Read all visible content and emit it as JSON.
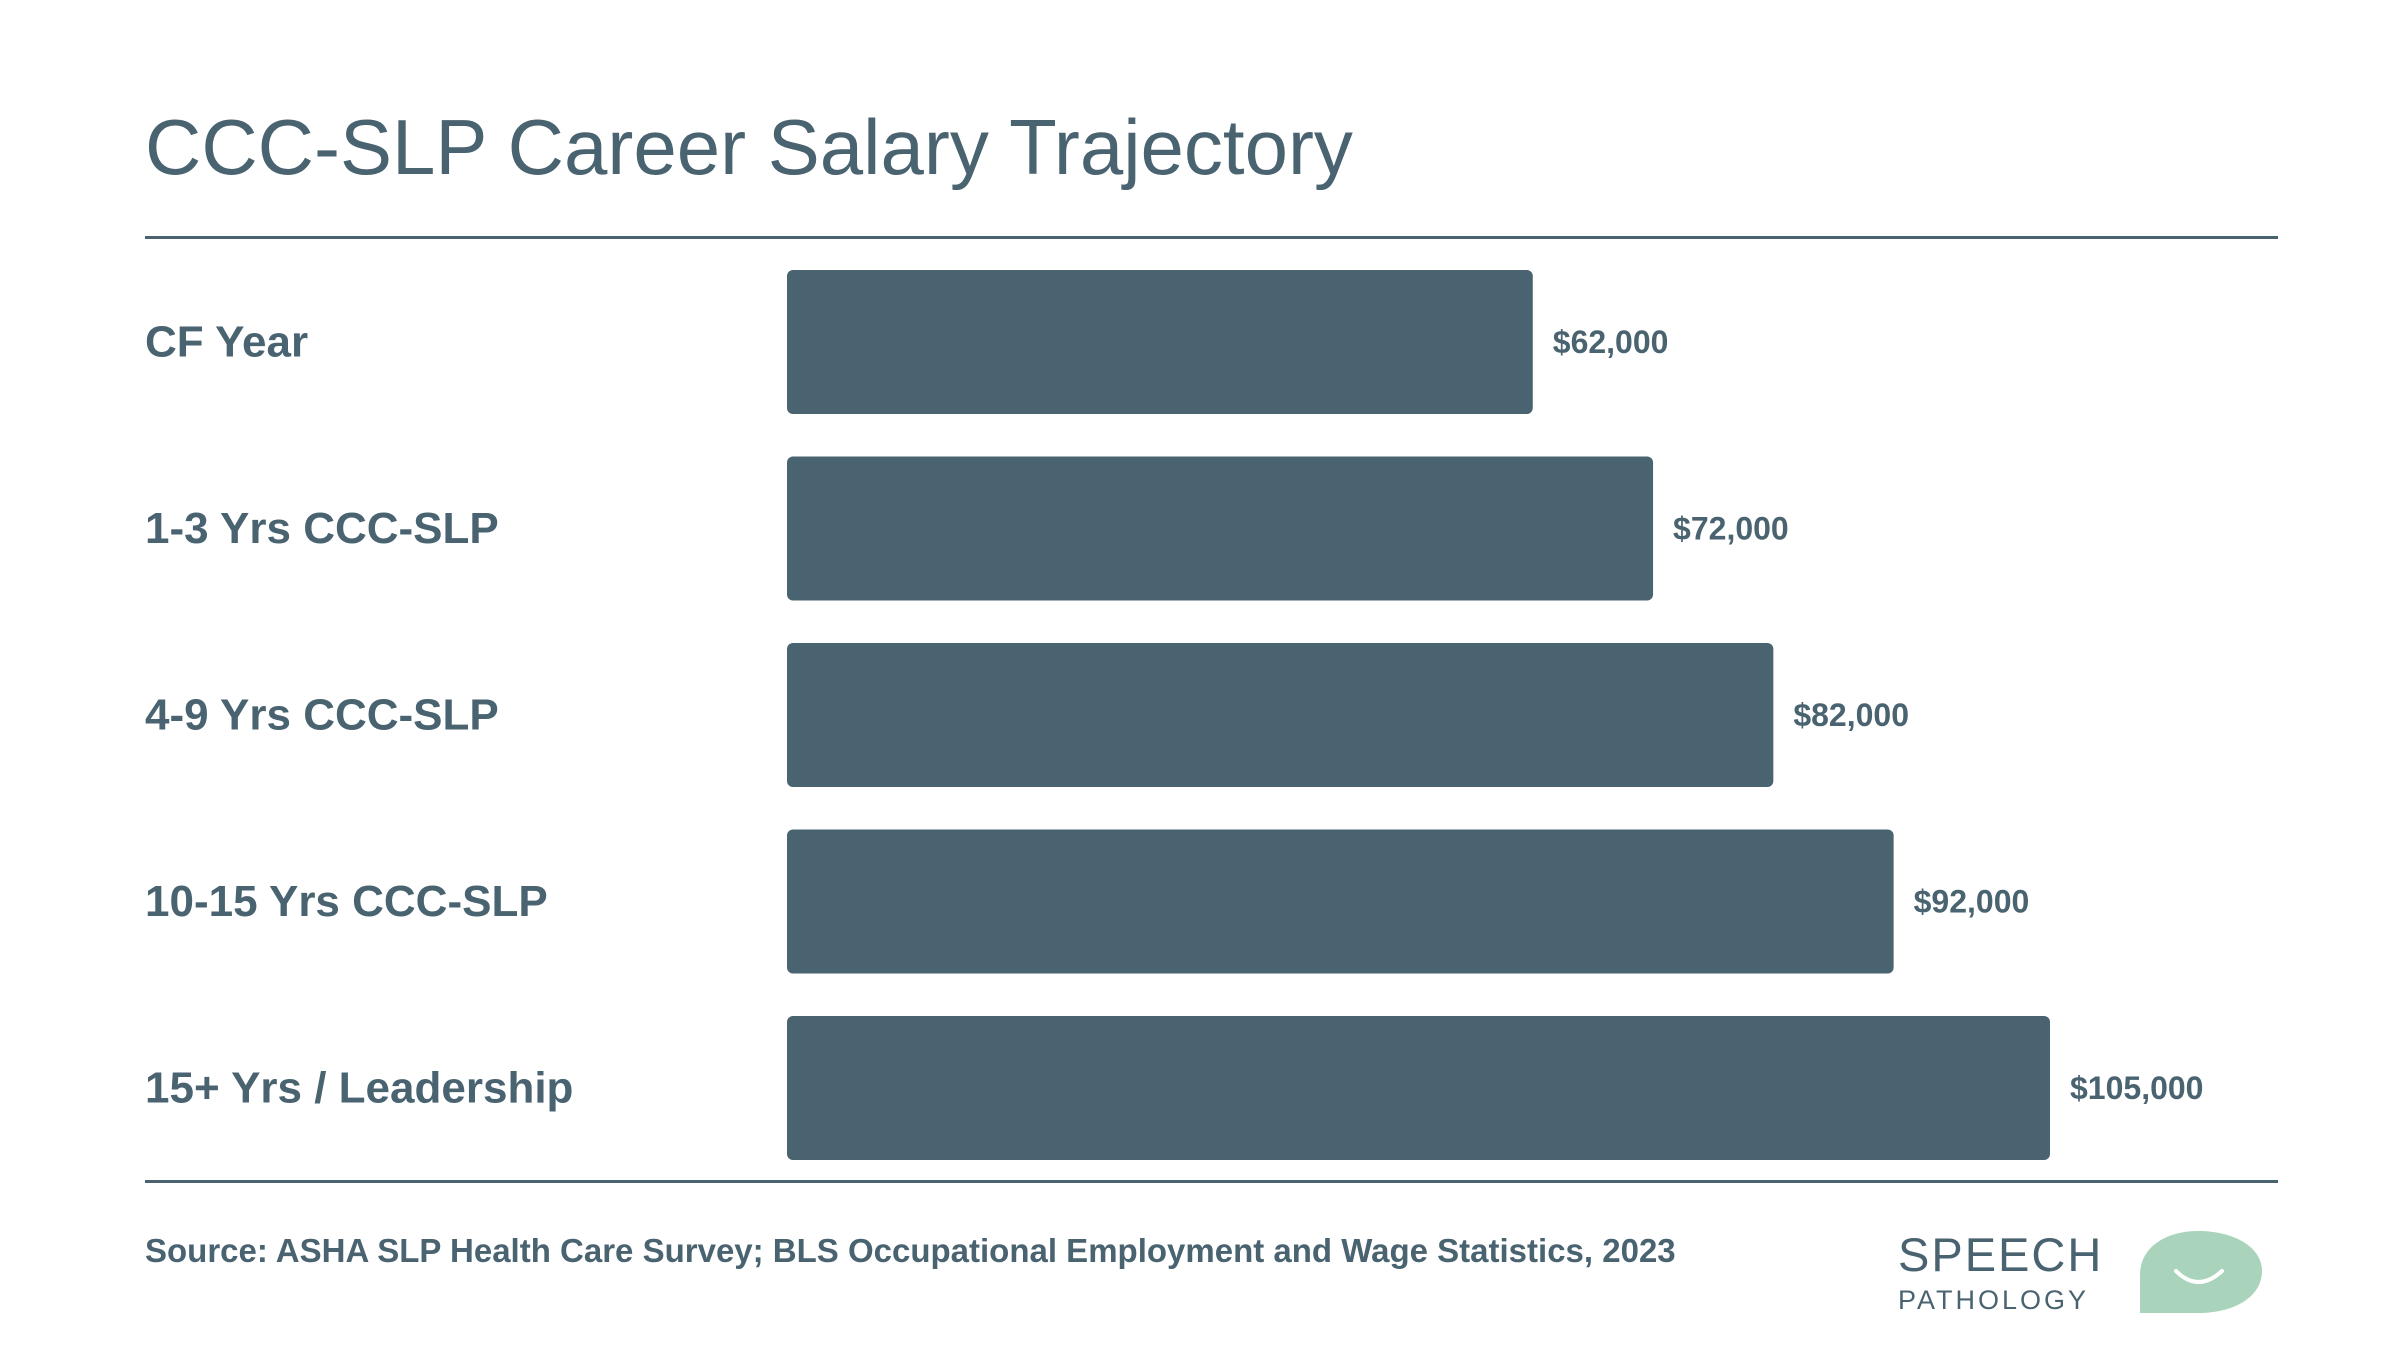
{
  "title": "CCC-SLP Career Salary Trajectory",
  "source": "Source: ASHA SLP Health Care Survey; BLS Occupational Employment and Wage Statistics, 2023",
  "logo": {
    "line1": "SPEECH",
    "line2": "PATHOLOGY"
  },
  "colors": {
    "bar": "#4a6370",
    "text": "#4a6370",
    "logo_bubble": "#a9d4bb"
  },
  "chart_data": {
    "type": "bar",
    "orientation": "horizontal",
    "categories": [
      "CF Year",
      "1-3 Yrs CCC-SLP",
      "4-9 Yrs CCC-SLP",
      "10-15 Yrs CCC-SLP",
      "15+ Yrs / Leadership"
    ],
    "values": [
      62000,
      72000,
      82000,
      92000,
      105000
    ],
    "value_labels": [
      "$62,000",
      "$72,000",
      "$82,000",
      "$92,000",
      "$105,000"
    ],
    "title": "CCC-SLP Career Salary Trajectory",
    "xlabel": "",
    "ylabel": "",
    "xlim": [
      0,
      105000
    ],
    "grid": false,
    "legend": "none"
  }
}
